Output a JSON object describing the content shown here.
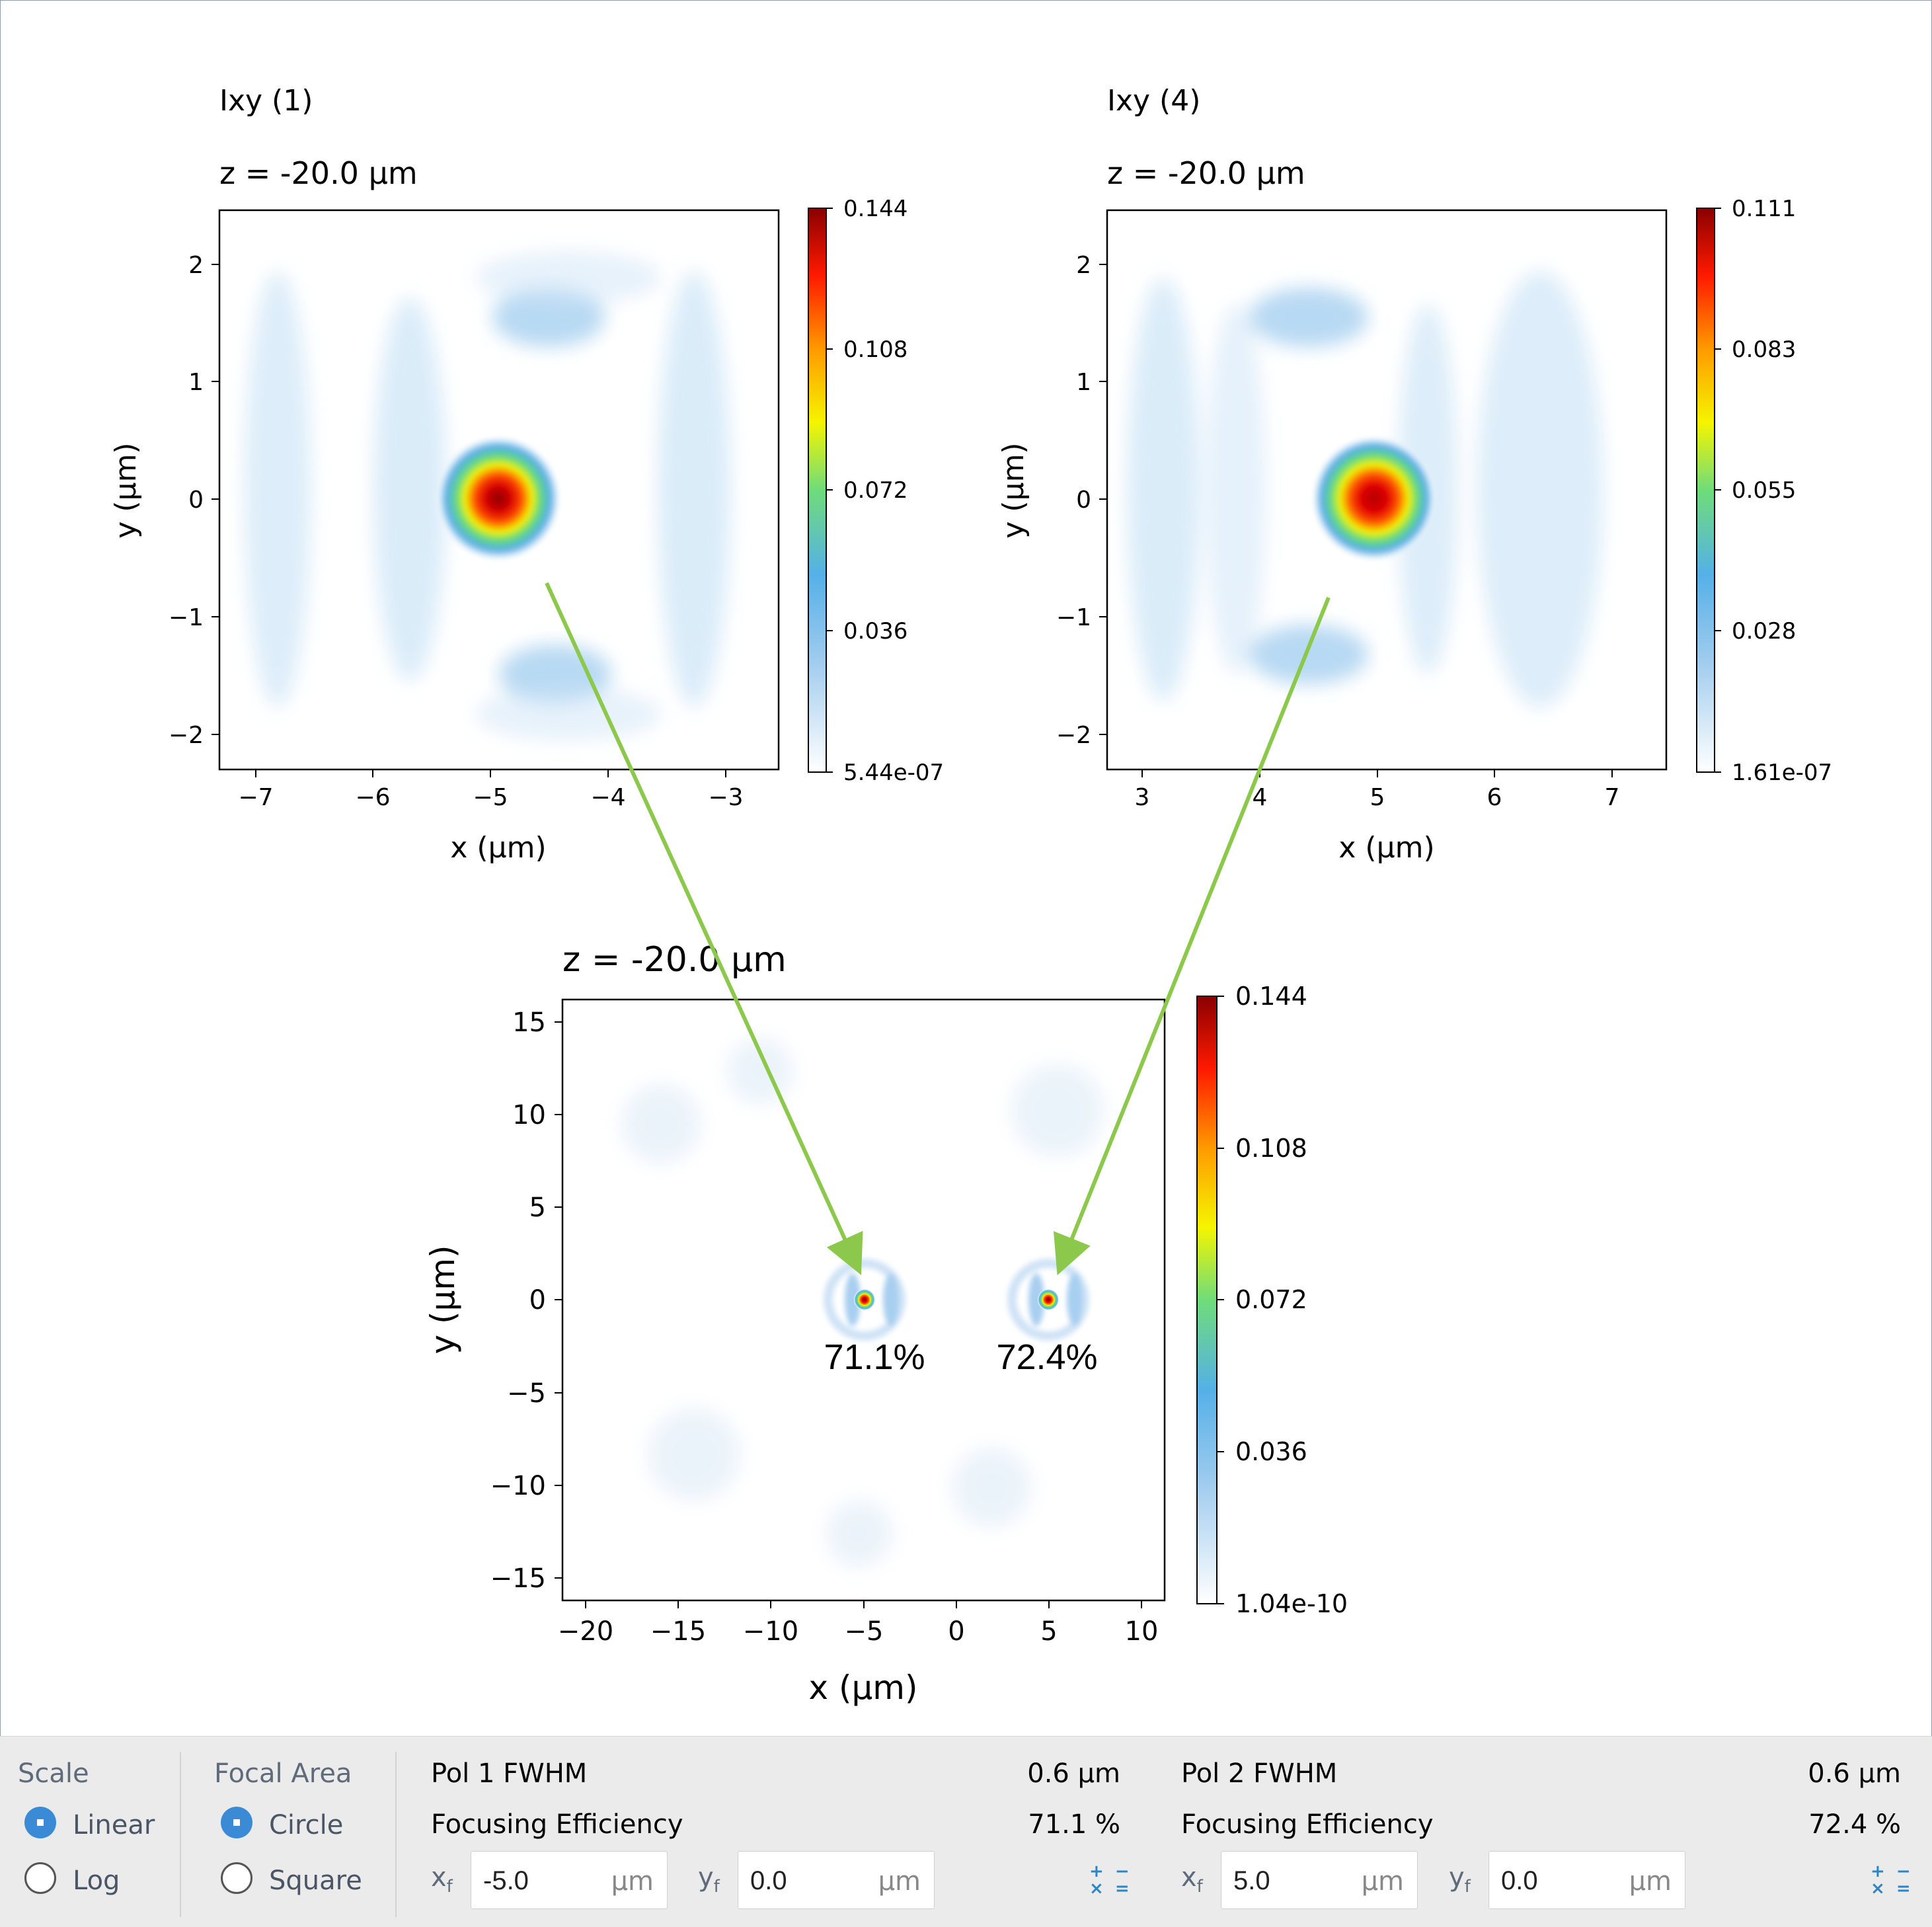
{
  "plots": {
    "top_left": {
      "title": "Ixy (1)",
      "subtitle": "z = -20.0 µm",
      "xlabel": "x (µm)",
      "ylabel": "y (µm)",
      "xticks": [
        "−7",
        "−6",
        "−5",
        "−4",
        "−3"
      ],
      "yticks": [
        "2",
        "1",
        "0",
        "−1",
        "−2"
      ],
      "colorbar_ticks": [
        "0.144",
        "0.108",
        "0.072",
        "0.036",
        "5.44e-07"
      ]
    },
    "top_right": {
      "title": "Ixy (4)",
      "subtitle": "z = -20.0 µm",
      "xlabel": "x (µm)",
      "ylabel": "y (µm)",
      "xticks": [
        "3",
        "4",
        "5",
        "6",
        "7"
      ],
      "yticks": [
        "2",
        "1",
        "0",
        "−1",
        "−2"
      ],
      "colorbar_ticks": [
        "0.111",
        "0.083",
        "0.055",
        "0.028",
        "1.61e-07"
      ]
    },
    "bottom": {
      "subtitle": "z = -20.0 µm",
      "xlabel": "x (µm)",
      "ylabel": "y (µm)",
      "xticks": [
        "−20",
        "−15",
        "−10",
        "−5",
        "0",
        "5",
        "10"
      ],
      "yticks": [
        "15",
        "10",
        "5",
        "0",
        "−5",
        "−10",
        "−15"
      ],
      "colorbar_ticks": [
        "0.144",
        "0.108",
        "0.072",
        "0.036",
        "1.04e-10"
      ],
      "annotations": [
        "71.1%",
        "72.4%"
      ]
    },
    "arrow_color": "#8cc84b"
  },
  "controls": {
    "scale": {
      "label": "Scale",
      "options": [
        "Linear",
        "Log"
      ],
      "selected": "Linear"
    },
    "focal_area": {
      "label": "Focal Area",
      "options": [
        "Circle",
        "Square"
      ],
      "selected": "Circle"
    },
    "pol1": {
      "fwhm_label": "Pol 1 FWHM",
      "fwhm_value": "0.6 µm",
      "eff_label": "Focusing Efficiency",
      "eff_value": "71.1 %",
      "xf_label": "x",
      "xf_sub": "f",
      "xf_value": "-5.0",
      "xf_unit": "µm",
      "yf_label": "y",
      "yf_sub": "f",
      "yf_value": "0.0",
      "yf_unit": "µm"
    },
    "pol2": {
      "fwhm_label": "Pol 2 FWHM",
      "fwhm_value": "0.6 µm",
      "eff_label": "Focusing Efficiency",
      "eff_value": "72.4 %",
      "xf_label": "x",
      "xf_sub": "f",
      "xf_value": "5.0",
      "xf_unit": "µm",
      "yf_label": "y",
      "yf_sub": "f",
      "yf_value": "0.0",
      "yf_unit": "µm"
    },
    "accent_color": "#3a8ad6"
  }
}
